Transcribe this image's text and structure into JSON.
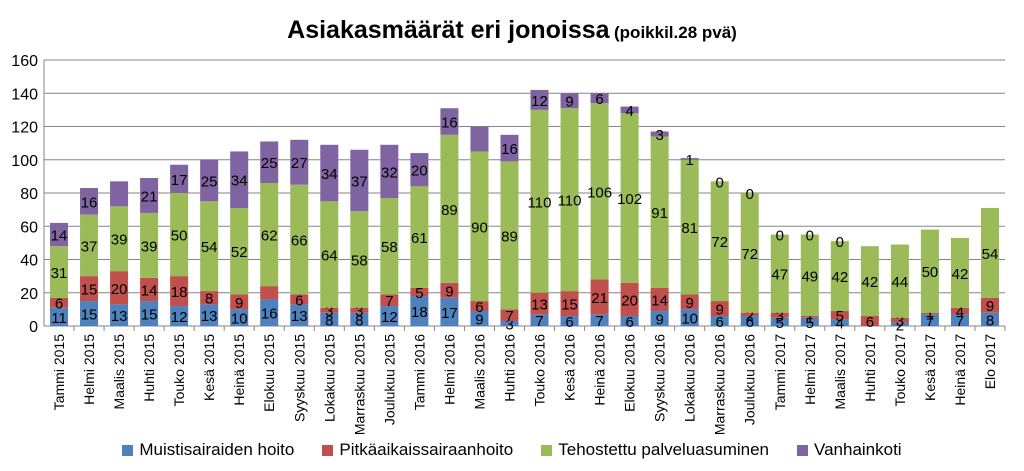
{
  "chart_data": {
    "type": "bar",
    "stacked": true,
    "title": "Asiakasmäärät eri jonoissa",
    "subtitle": "(poikkil.28 pvä)",
    "xlabel": "",
    "ylabel": "",
    "ylim": [
      0,
      160
    ],
    "yticks": [
      "0",
      "20",
      "40",
      "60",
      "80",
      "100",
      "120",
      "140",
      "160"
    ],
    "grid": true,
    "legend_position": "bottom",
    "categories": [
      "Tammi 2015",
      "Helmi 2015",
      "Maalis 2015",
      "Huhti 2015",
      "Touko 2015",
      "Kesä 2015",
      "Heinä 2015",
      "Elokuu 2015",
      "Syyskuu 2015",
      "Lokakuu 2015",
      "Marraskuu 2015",
      "Joulukuu 2015",
      "Tammi 2016",
      "Helmi 2016",
      "Maalis 2016",
      "Huhti 2016",
      "Touko 2016",
      "Kesä 2016",
      "Heinä 2016",
      "Elokuu 2016",
      "Syyskuu 2016",
      "Lokakuu 2016",
      "Marraskuu 2016",
      "Joulukuu 2016",
      "Tammi 2017",
      "Helmi 2017",
      "Maalis 2017",
      "Huhti 2017",
      "Touko 2017",
      "Kesä 2017",
      "Heinä 2017",
      "Elo 2017"
    ],
    "series": [
      {
        "name": "Muistisairaiden hoito",
        "color": "#4f81bd",
        "values": [
          11,
          15,
          13,
          15,
          12,
          13,
          10,
          16,
          13,
          8,
          8,
          12,
          18,
          17,
          9,
          3,
          7,
          6,
          7,
          6,
          9,
          10,
          6,
          6,
          5,
          5,
          4,
          0,
          2,
          7,
          7,
          8
        ],
        "labels": [
          "11",
          "15",
          "13",
          "15",
          "12",
          "13",
          "10",
          "16",
          "13",
          "8",
          "8",
          "12",
          "18",
          "17",
          "9",
          "3",
          "7",
          "6",
          "7",
          "6",
          "9",
          "10",
          "6",
          "6",
          "5",
          "5",
          "4",
          "",
          "2",
          "7",
          "7",
          "8"
        ]
      },
      {
        "name": "Pitkäaikaissairaanhoito",
        "color": "#c0504d",
        "values": [
          6,
          15,
          20,
          14,
          18,
          8,
          9,
          8,
          6,
          3,
          3,
          7,
          5,
          9,
          6,
          7,
          13,
          15,
          21,
          20,
          14,
          9,
          9,
          2,
          3,
          1,
          5,
          6,
          3,
          1,
          4,
          9
        ],
        "labels": [
          "6",
          "15",
          "20",
          "14",
          "18",
          "8",
          "9",
          "",
          "6",
          "3",
          "3",
          "7",
          "5",
          "9",
          "6",
          "7",
          "13",
          "15",
          "21",
          "20",
          "14",
          "9",
          "9",
          "2",
          "3",
          "1",
          "5",
          "6",
          "3",
          "1",
          "4",
          "9"
        ]
      },
      {
        "name": "Tehostettu palveluasuminen",
        "color": "#9bbb59",
        "values": [
          31,
          37,
          39,
          39,
          50,
          54,
          52,
          62,
          66,
          64,
          58,
          58,
          61,
          89,
          90,
          89,
          110,
          110,
          106,
          102,
          91,
          81,
          72,
          72,
          47,
          49,
          42,
          42,
          44,
          50,
          42,
          54
        ],
        "labels": [
          "31",
          "37",
          "39",
          "39",
          "50",
          "54",
          "52",
          "62",
          "66",
          "64",
          "58",
          "58",
          "61",
          "89",
          "90",
          "89",
          "110",
          "110",
          "106",
          "102",
          "91",
          "81",
          "72",
          "72",
          "47",
          "49",
          "42",
          "42",
          "44",
          "50",
          "42",
          "54"
        ]
      },
      {
        "name": "Vanhainkoti",
        "color": "#8064a2",
        "values": [
          14,
          16,
          15,
          21,
          17,
          25,
          34,
          25,
          27,
          34,
          37,
          32,
          20,
          16,
          15,
          16,
          12,
          9,
          6,
          4,
          3,
          1,
          0,
          0,
          0,
          0,
          0,
          0,
          0,
          0,
          0,
          0
        ],
        "labels": [
          "14",
          "16",
          "",
          "21",
          "17",
          "25",
          "34",
          "25",
          "27",
          "34",
          "37",
          "32",
          "20",
          "16",
          "",
          "16",
          "12",
          "9",
          "6",
          "4",
          "3",
          "1",
          "0",
          "0",
          "0",
          "0",
          "0",
          "",
          "",
          "",
          "",
          ""
        ]
      }
    ]
  }
}
